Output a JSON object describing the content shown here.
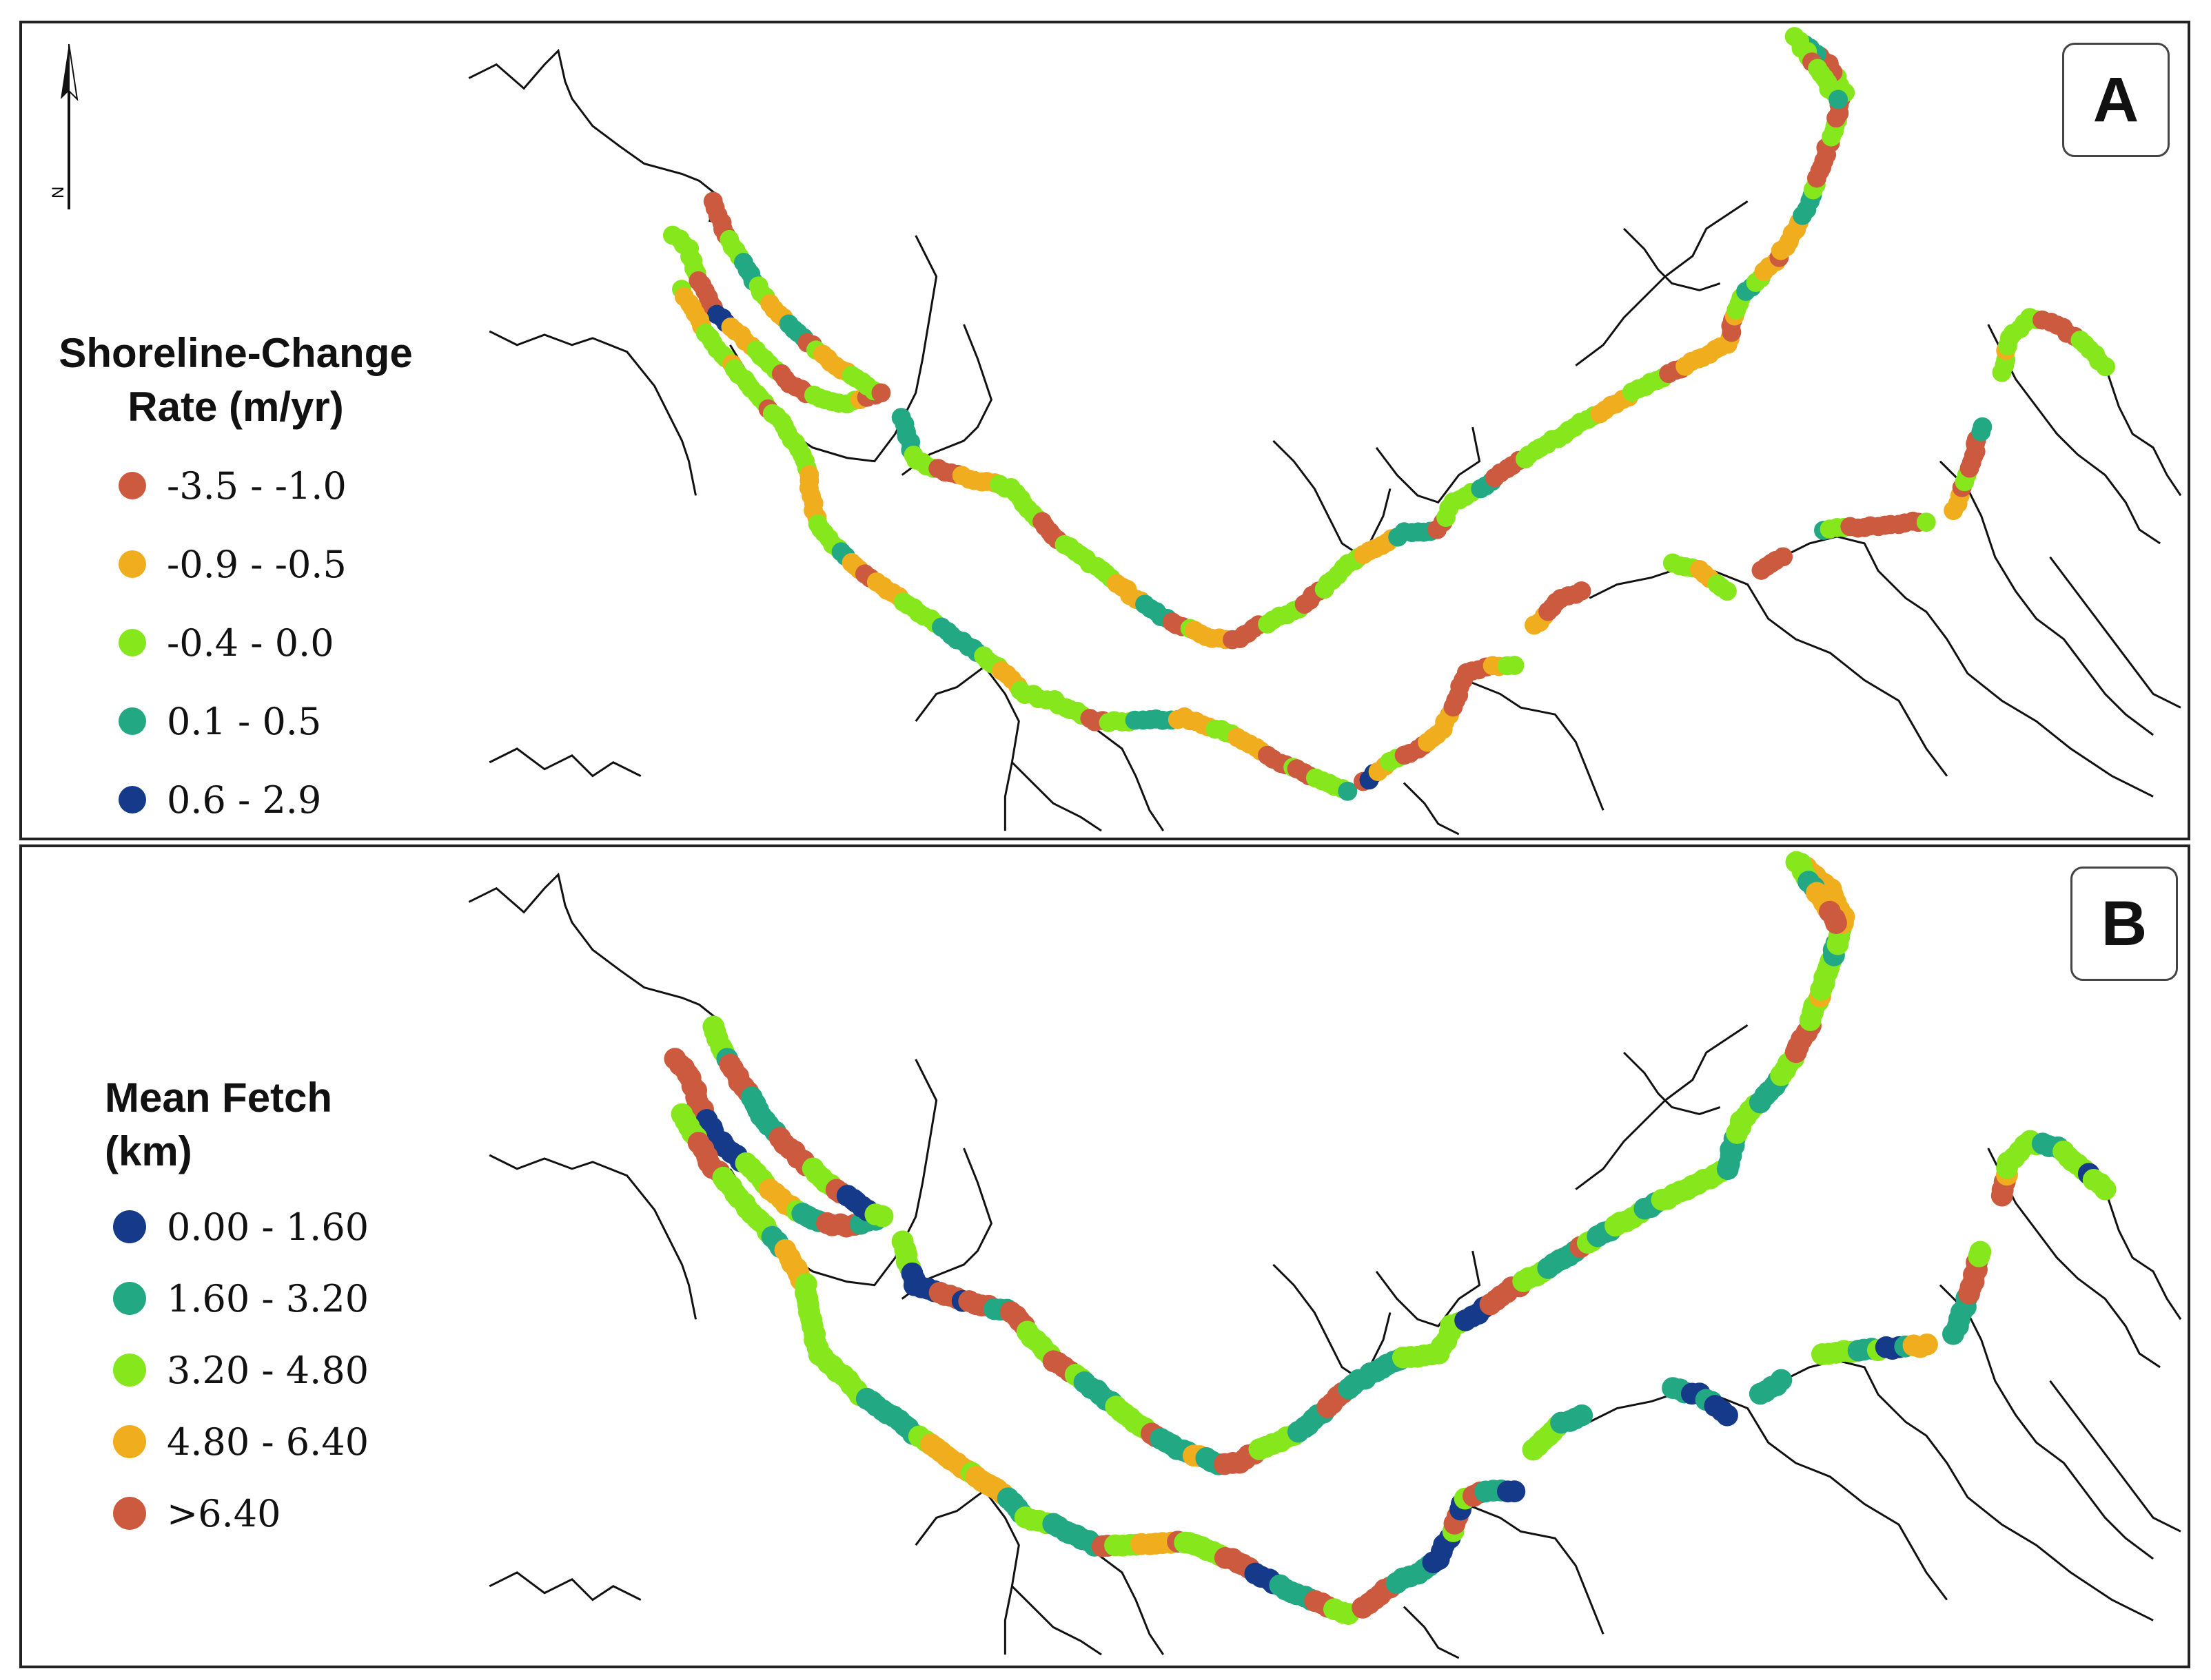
{
  "panels": [
    {
      "id": "A",
      "label": "A",
      "legend_title": "Shoreline-Change\nRate (m/yr)",
      "north_label": "N",
      "legend": [
        {
          "label": "-3.5 - -1.0",
          "color": "#cc5a3e"
        },
        {
          "label": "-0.9 - -0.5",
          "color": "#f0ae1e"
        },
        {
          "label": "-0.4 - 0.0",
          "color": "#86e81c"
        },
        {
          "label": "0.1 - 0.5",
          "color": "#23a884"
        },
        {
          "label": "0.6 - 2.9",
          "color": "#153a8a"
        }
      ]
    },
    {
      "id": "B",
      "label": "B",
      "legend_title": "Mean Fetch\n(km)",
      "legend": [
        {
          "label": "0.00 - 1.60",
          "color": "#153a8a"
        },
        {
          "label": "1.60 - 3.20",
          "color": "#23a884"
        },
        {
          "label": "3.20 - 4.80",
          "color": "#86e81c"
        },
        {
          "label": "4.80 - 6.40",
          "color": "#f0ae1e"
        },
        {
          "label": ">6.40",
          "color": "#cc5a3e"
        }
      ]
    }
  ]
}
